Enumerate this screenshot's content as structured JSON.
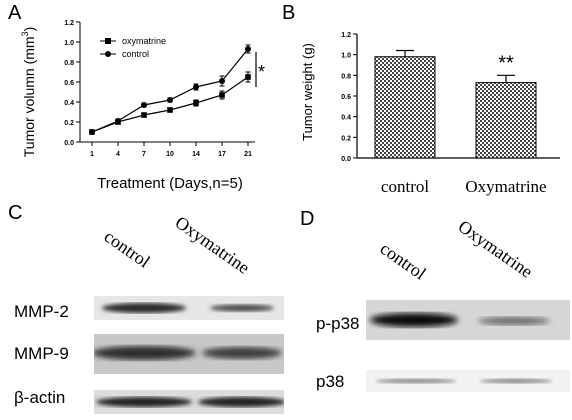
{
  "panels": {
    "A": "A",
    "B": "B",
    "C": "C",
    "D": "D"
  },
  "chart_data": [
    {
      "type": "line",
      "panel": "A",
      "ylabel": "Tumor volumn (mm³)",
      "ylabel_parts": {
        "text": "Tumor volumn (mm",
        "sup": "3",
        "close": ")"
      },
      "xlabel": "Treatment (Days,n=5)",
      "x": [
        "1",
        "4",
        "7",
        "10",
        "14",
        "17",
        "21"
      ],
      "yticks": [
        "0.0",
        "0.2",
        "0.4",
        "0.6",
        "0.8",
        "1.0",
        "1.2"
      ],
      "ylim": [
        0,
        1.2
      ],
      "series": [
        {
          "name": "oxymatrine",
          "marker": "square",
          "values": [
            0.1,
            0.2,
            0.27,
            0.32,
            0.39,
            0.47,
            0.65
          ],
          "err": [
            0.01,
            0.02,
            0.02,
            0.02,
            0.03,
            0.04,
            0.05
          ]
        },
        {
          "name": "control",
          "marker": "circle",
          "values": [
            0.1,
            0.21,
            0.37,
            0.42,
            0.55,
            0.61,
            0.93
          ],
          "err": [
            0.01,
            0.02,
            0.02,
            0.02,
            0.03,
            0.05,
            0.04
          ]
        }
      ],
      "significance": "*",
      "grid": false,
      "legend": "top-left"
    },
    {
      "type": "bar",
      "panel": "B",
      "ylabel": "Tumor weight (g)",
      "categories": [
        "control",
        "Oxymatrine"
      ],
      "values": [
        0.98,
        0.73
      ],
      "err": [
        0.06,
        0.07
      ],
      "yticks": [
        "0.0",
        "0.2",
        "0.4",
        "0.6",
        "0.8",
        "1.0",
        "1.2"
      ],
      "ylim": [
        0,
        1.2
      ],
      "significance": "**",
      "grid": false
    }
  ],
  "blot_C": {
    "lanes": [
      "control",
      "Oxymatrine"
    ],
    "rows": [
      "MMP-2",
      "MMP-9",
      "β-actin"
    ]
  },
  "blot_D": {
    "lanes": [
      "control",
      "Oxymatrine"
    ],
    "rows": [
      "p-p38",
      "p38"
    ]
  }
}
